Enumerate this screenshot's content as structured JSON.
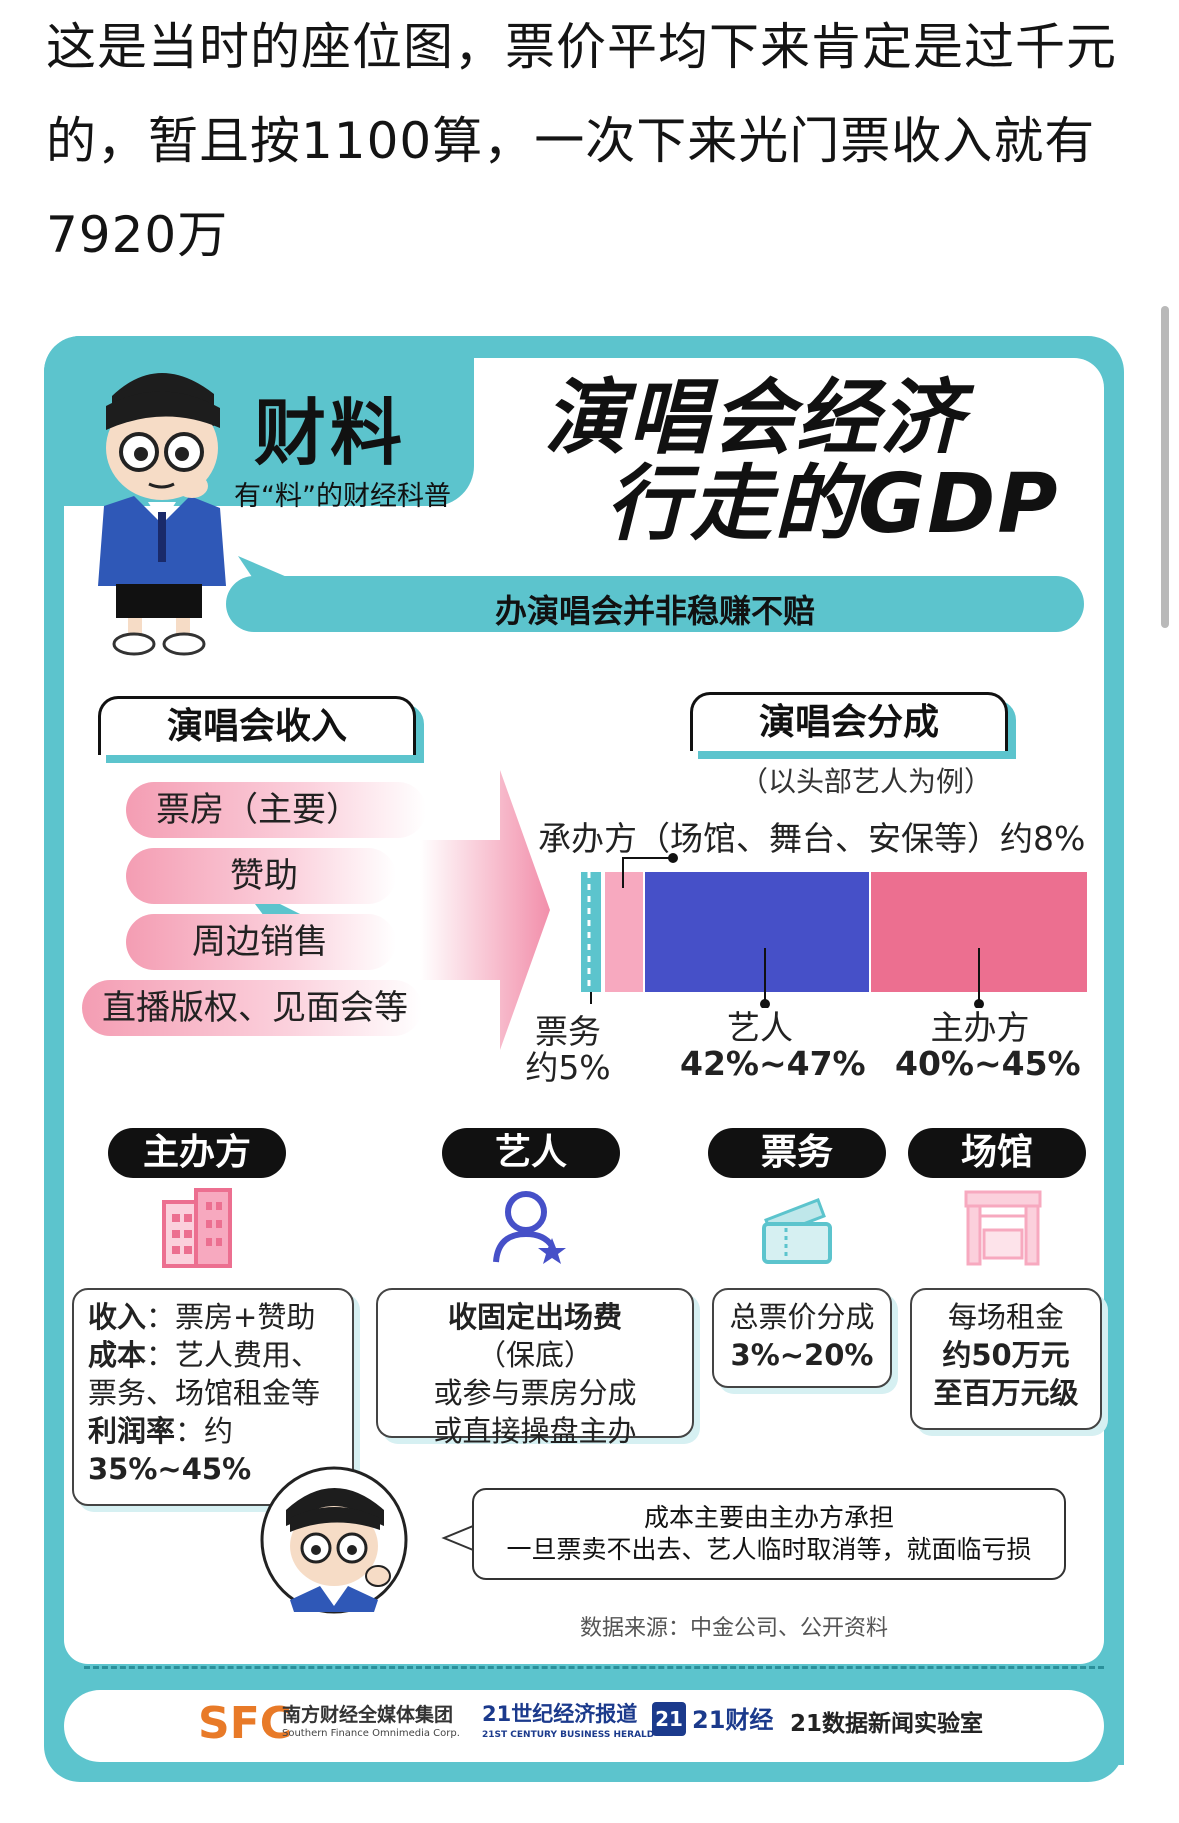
{
  "post": {
    "line1": "这是当时的座位图，票价平均下来肯定是过千元",
    "line2": "的，暂且按1100算，一次下来光门票收入就有",
    "line3": "7920万"
  },
  "poster": {
    "brand_title": "财料",
    "brand_subtitle": "有“料”的财经科普",
    "headline_1": "演唱会经济",
    "headline_2": "行走的GDP",
    "speech": "办演唱会并非稳赚不赔",
    "income": {
      "title": "演唱会收入",
      "items": [
        "票房（主要）",
        "赞助",
        "周边销售",
        "直播版权、见面会等"
      ]
    },
    "split": {
      "title": "演唱会分成",
      "note": "（以头部艺人为例）",
      "host_label": "承办方（场馆、舞台、安保等）约8%",
      "ticketing_label_1": "票务",
      "ticketing_label_2": "约5%",
      "artist_label_1": "艺人",
      "artist_label_2": "42%~47%",
      "organizer_label_1": "主办方",
      "organizer_label_2": "40%~45%"
    },
    "roles": {
      "organizer": {
        "tag": "主办方",
        "income_k": "收入",
        "income_v": "：票房+赞助",
        "cost_k": "成本",
        "cost_v": "：艺人费用、",
        "cost_v2": "票务、场馆租金等",
        "profit_k": "利润率",
        "profit_v": "：约",
        "profit_v2": "35%~45%"
      },
      "artist": {
        "tag": "艺人",
        "l1b": "收固定出场费",
        "l1": "（保底）",
        "l2": "或参与票房分成",
        "l3": "或直接操盘主办"
      },
      "ticketing": {
        "tag": "票务",
        "l1": "总票价分成",
        "l2": "3%~20%"
      },
      "venue": {
        "tag": "场馆",
        "l1": "每场租金",
        "l2": "约50万元",
        "l3": "至百万元级"
      }
    },
    "bubble_1": "成本主要由主办方承担",
    "bubble_2": "一旦票卖不出去、艺人临时取消等，就面临亏损",
    "source": "数据来源：中金公司、公开资料",
    "footer": {
      "sfc": "SFC",
      "sfc_cn": "南方财经全媒体集团",
      "sfc_en": "Southern Finance Omnimedia Corp.",
      "c21": "21世纪经济报道",
      "c21_en": "21ST CENTURY BUSINESS HERALD",
      "cj21_badge": "21",
      "cj21": "21财经",
      "lab": "21数据新闻实验室"
    }
  },
  "colors": {
    "teal": "#5cc4cd",
    "blue": "#4650c8",
    "pink": "#ec6f90",
    "light_pink": "#f7a9bf"
  }
}
